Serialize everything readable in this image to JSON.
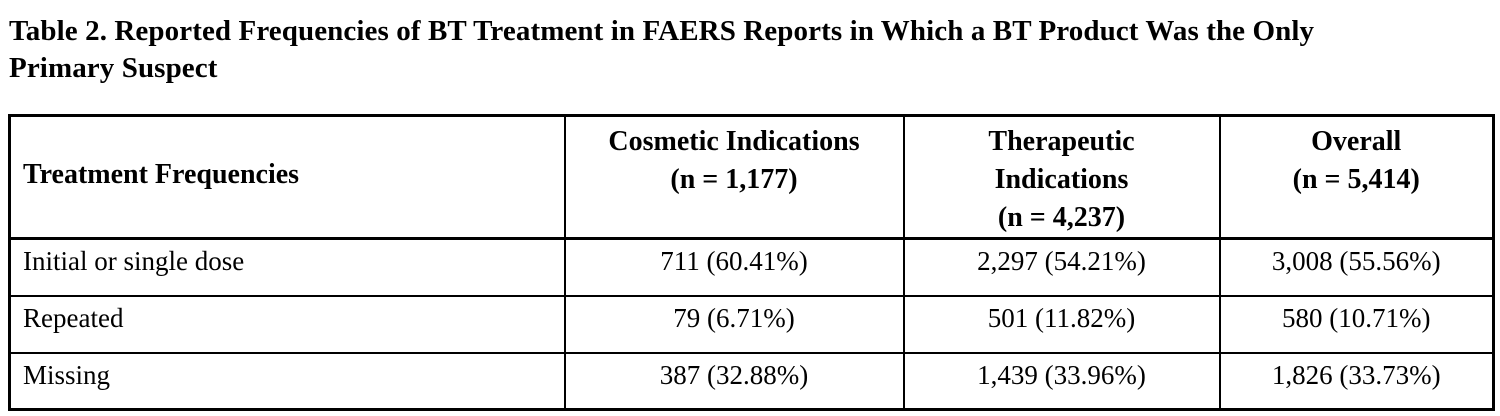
{
  "page": {
    "background": "#ffffff",
    "text_color": "#000000",
    "border_color": "#000000"
  },
  "title": {
    "line1": "Table 2. Reported Frequencies of BT Treatment in FAERS Reports in Which a BT Product Was the Only",
    "line2": "Primary Suspect"
  },
  "table": {
    "columns": [
      {
        "id": "treatment_frequencies",
        "lines": [
          "Treatment Frequencies"
        ]
      },
      {
        "id": "cosmetic_indications",
        "lines": [
          "Cosmetic Indications",
          "(n = 1,177)"
        ]
      },
      {
        "id": "therapeutic_indications",
        "lines": [
          "Therapeutic",
          "Indications",
          "(n = 4,237)"
        ]
      },
      {
        "id": "overall",
        "lines": [
          "Overall",
          "(n = 5,414)"
        ]
      }
    ],
    "rows": [
      {
        "label": "Initial or single dose",
        "cosmetic": "711 (60.41%)",
        "therapeutic": "2,297 (54.21%)",
        "overall": "3,008 (55.56%)"
      },
      {
        "label": "Repeated",
        "cosmetic": "79 (6.71%)",
        "therapeutic": "501 (11.82%)",
        "overall": "580 (10.71%)"
      },
      {
        "label": "Missing",
        "cosmetic": "387 (32.88%)",
        "therapeutic": "1,439 (33.96%)",
        "overall": "1,826 (33.73%)"
      }
    ]
  }
}
